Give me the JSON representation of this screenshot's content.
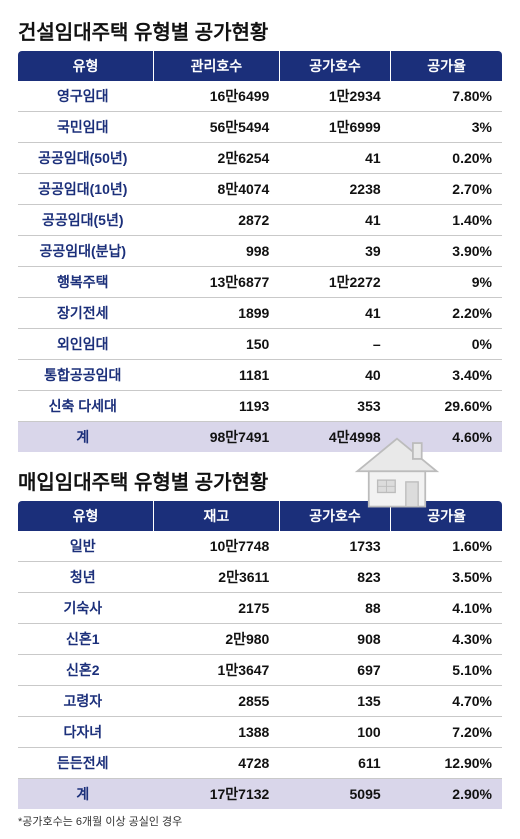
{
  "section1": {
    "title": "건설임대주택 유형별 공가현황",
    "headers": [
      "유형",
      "관리호수",
      "공가호수",
      "공가율"
    ],
    "rows": [
      {
        "type": "영구임대",
        "c1": "16만6499",
        "c2": "1만2934",
        "c3": "7.80%"
      },
      {
        "type": "국민임대",
        "c1": "56만5494",
        "c2": "1만6999",
        "c3": "3%"
      },
      {
        "type": "공공임대(50년)",
        "c1": "2만6254",
        "c2": "41",
        "c3": "0.20%"
      },
      {
        "type": "공공임대(10년)",
        "c1": "8만4074",
        "c2": "2238",
        "c3": "2.70%"
      },
      {
        "type": "공공임대(5년)",
        "c1": "2872",
        "c2": "41",
        "c3": "1.40%"
      },
      {
        "type": "공공임대(분납)",
        "c1": "998",
        "c2": "39",
        "c3": "3.90%"
      },
      {
        "type": "행복주택",
        "c1": "13만6877",
        "c2": "1만2272",
        "c3": "9%"
      },
      {
        "type": "장기전세",
        "c1": "1899",
        "c2": "41",
        "c3": "2.20%"
      },
      {
        "type": "외인임대",
        "c1": "150",
        "c2": "–",
        "c3": "0%"
      },
      {
        "type": "통합공공임대",
        "c1": "1181",
        "c2": "40",
        "c3": "3.40%"
      },
      {
        "type": "신축 다세대",
        "c1": "1193",
        "c2": "353",
        "c3": "29.60%"
      }
    ],
    "total": {
      "type": "계",
      "c1": "98만7491",
      "c2": "4만4998",
      "c3": "4.60%"
    }
  },
  "section2": {
    "title": "매입임대주택 유형별 공가현황",
    "headers": [
      "유형",
      "재고",
      "공가호수",
      "공가율"
    ],
    "rows": [
      {
        "type": "일반",
        "c1": "10만7748",
        "c2": "1733",
        "c3": "1.60%"
      },
      {
        "type": "청년",
        "c1": "2만3611",
        "c2": "823",
        "c3": "3.50%"
      },
      {
        "type": "기숙사",
        "c1": "2175",
        "c2": "88",
        "c3": "4.10%"
      },
      {
        "type": "신혼1",
        "c1": "2만980",
        "c2": "908",
        "c3": "4.30%"
      },
      {
        "type": "신혼2",
        "c1": "1만3647",
        "c2": "697",
        "c3": "5.10%"
      },
      {
        "type": "고령자",
        "c1": "2855",
        "c2": "135",
        "c3": "4.70%"
      },
      {
        "type": "다자녀",
        "c1": "1388",
        "c2": "100",
        "c3": "7.20%"
      },
      {
        "type": "든든전세",
        "c1": "4728",
        "c2": "611",
        "c3": "12.90%"
      }
    ],
    "total": {
      "type": "계",
      "c1": "17만7132",
      "c2": "5095",
      "c3": "2.90%"
    }
  },
  "footnote": "*공가호수는 6개월 이상 공실인 경우",
  "style": {
    "header_bg": "#1b2f7a",
    "header_fg": "#ffffff",
    "type_color": "#1b2f7a",
    "total_bg": "#d9d6ea",
    "border_color": "#c9c9c9",
    "title_fontsize": 20,
    "cell_fontsize": 14,
    "footnote_fontsize": 11
  }
}
